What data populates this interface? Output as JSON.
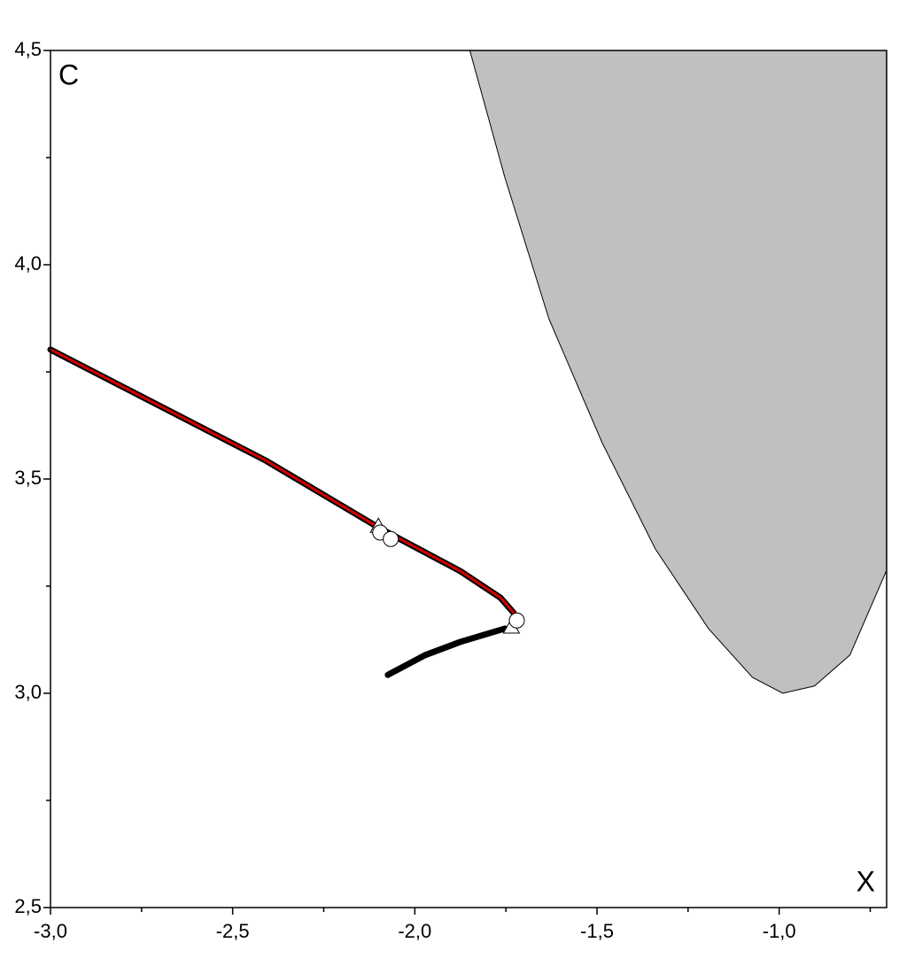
{
  "chart_data": {
    "type": "line",
    "panel_label": "C",
    "x_label": "X",
    "xlim": [
      -3.0,
      -0.705
    ],
    "ylim": [
      2.5,
      4.5
    ],
    "xticks": [
      {
        "value": -3.0,
        "label": "-3,0"
      },
      {
        "value": -2.5,
        "label": "-2,5"
      },
      {
        "value": -2.0,
        "label": "-2,0"
      },
      {
        "value": -1.5,
        "label": "-1,5"
      },
      {
        "value": -1.0,
        "label": "-1,0"
      }
    ],
    "yticks": [
      {
        "value": 2.5,
        "label": "2,5"
      },
      {
        "value": 3.0,
        "label": "3,0"
      },
      {
        "value": 3.5,
        "label": "3,5"
      },
      {
        "value": 4.0,
        "label": "4,0"
      },
      {
        "value": 4.5,
        "label": "4,5"
      }
    ],
    "xminorticks": [
      -2.75,
      -2.25,
      -1.75,
      -1.25,
      -0.75
    ],
    "yminorticks": [
      2.75,
      3.25,
      3.75,
      4.25
    ],
    "region": {
      "color": "#c0c0c0",
      "x": [
        -1.849,
        -1.753,
        -1.632,
        -1.486,
        -1.34,
        -1.194,
        -1.073,
        -0.99,
        -0.903,
        -0.806,
        -0.706
      ],
      "values": [
        4.5,
        4.204,
        3.874,
        3.585,
        3.337,
        3.151,
        3.037,
        3.0,
        3.017,
        3.089,
        3.285
      ]
    },
    "series": [
      {
        "color": "#d40000",
        "x": [
          -3.0,
          -2.409,
          -2.094,
          -1.875,
          -1.765,
          -1.729
        ],
        "values": [
          3.802,
          3.543,
          3.384,
          3.285,
          3.223,
          3.188
        ]
      },
      {
        "color": "#000000",
        "x": [
          -2.074,
          -1.972,
          -1.875,
          -1.753
        ],
        "values": [
          3.043,
          3.089,
          3.12,
          3.151
        ]
      }
    ],
    "markers": [
      {
        "shape": "triangle",
        "x": -2.1,
        "y": 3.39
      },
      {
        "shape": "triangle",
        "x": -1.735,
        "y": 3.155
      },
      {
        "shape": "circle",
        "x": -2.095,
        "y": 3.375
      },
      {
        "shape": "circle",
        "x": -2.066,
        "y": 3.36
      },
      {
        "shape": "circle",
        "x": -1.72,
        "y": 3.17
      }
    ]
  }
}
